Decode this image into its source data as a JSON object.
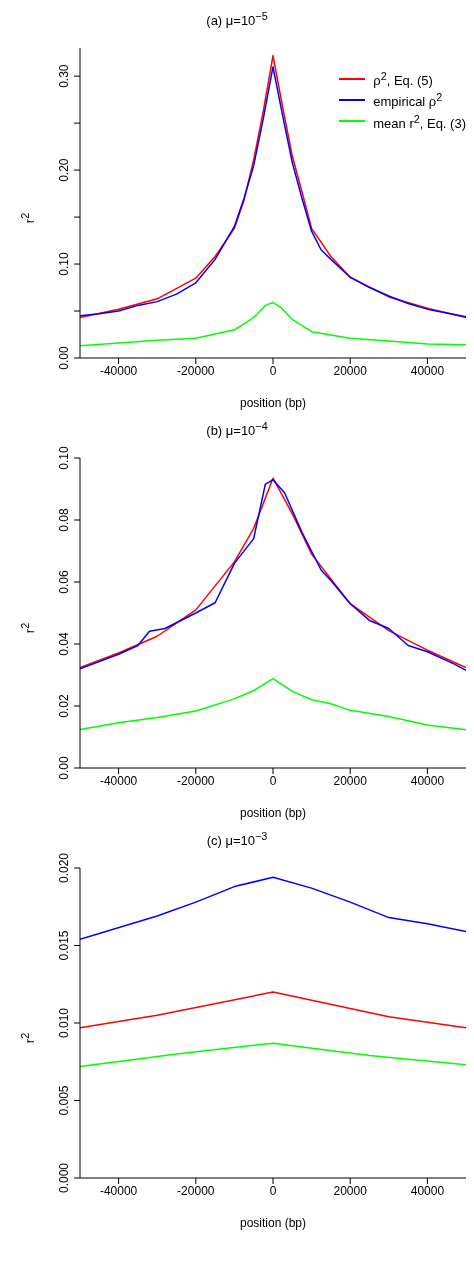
{
  "chart_data": [
    {
      "type": "line",
      "title": "(a) μ=10$^{−5}$",
      "xlabel": "position (bp)",
      "ylabel": "r$^{2}$",
      "xlim": [
        -50000,
        50000
      ],
      "xticks": [
        -40000,
        -20000,
        0,
        20000,
        40000
      ],
      "ylim": [
        0,
        0.33
      ],
      "yticks": [
        {
          "value": 0,
          "label": "0.00"
        },
        {
          "value": 0.05,
          "label": null
        },
        {
          "value": 0.1,
          "label": "0.10"
        },
        {
          "value": 0.15,
          "label": null
        },
        {
          "value": 0.2,
          "label": "0.20"
        },
        {
          "value": 0.25,
          "label": null
        },
        {
          "value": 0.3,
          "label": "0.30"
        }
      ],
      "legend": "top right",
      "marker": "none",
      "line_style": "solid",
      "series": [
        {
          "name": "ρ$^{2}$, Eq. (5)",
          "color": "#ff0000",
          "x": [
            -50000,
            -40000,
            -30000,
            -20000,
            -15000,
            -10000,
            -7500,
            -5000,
            -2500,
            0,
            2500,
            5000,
            7500,
            10000,
            15000,
            20000,
            30000,
            40000,
            50000
          ],
          "values": [
            0.043,
            0.052,
            0.063,
            0.085,
            0.108,
            0.138,
            0.168,
            0.211,
            0.263,
            0.322,
            0.267,
            0.215,
            0.177,
            0.138,
            0.108,
            0.086,
            0.065,
            0.053,
            0.043
          ]
        },
        {
          "name": "empirical ρ$^{2}$",
          "color": "#0000ff",
          "x": [
            -50000,
            -45000,
            -40000,
            -35000,
            -30000,
            -25000,
            -20000,
            -15000,
            -10000,
            -7500,
            -5000,
            -2500,
            0,
            2500,
            5000,
            7500,
            10000,
            12500,
            15000,
            20000,
            25000,
            30000,
            35000,
            40000,
            45000,
            50000
          ],
          "values": [
            0.045,
            0.047,
            0.05,
            0.056,
            0.06,
            0.068,
            0.08,
            0.105,
            0.14,
            0.17,
            0.205,
            0.255,
            0.31,
            0.258,
            0.208,
            0.17,
            0.135,
            0.115,
            0.105,
            0.086,
            0.075,
            0.066,
            0.058,
            0.052,
            0.048,
            0.044
          ]
        },
        {
          "name": "mean r$^{2}$, Eq. (3)",
          "color": "#00ff00",
          "x": [
            -50000,
            -30000,
            -20000,
            -10000,
            -5000,
            -2000,
            0,
            2000,
            5000,
            10000,
            20000,
            30000,
            40000,
            50000
          ],
          "values": [
            0.013,
            0.019,
            0.021,
            0.03,
            0.043,
            0.056,
            0.059,
            0.054,
            0.041,
            0.028,
            0.021,
            0.018,
            0.015,
            0.014
          ]
        }
      ]
    },
    {
      "type": "line",
      "title": "(b) μ=10$^{−4}$",
      "xlabel": "position (bp)",
      "ylabel": "r$^{2}$",
      "xlim": [
        -50000,
        50000
      ],
      "xticks": [
        -40000,
        -20000,
        0,
        20000,
        40000
      ],
      "ylim": [
        0,
        0.1
      ],
      "yticks": [
        {
          "value": 0,
          "label": "0.00"
        },
        {
          "value": 0.02,
          "label": "0.02"
        },
        {
          "value": 0.04,
          "label": "0.04"
        },
        {
          "value": 0.06,
          "label": "0.06"
        },
        {
          "value": 0.08,
          "label": "0.08"
        },
        {
          "value": 0.1,
          "label": "0.10"
        }
      ],
      "marker": "none",
      "line_style": "solid",
      "series": [
        {
          "color": "#ff0000",
          "x": [
            -50000,
            -40000,
            -30000,
            -20000,
            -10000,
            -5000,
            0,
            5000,
            10000,
            20000,
            30000,
            40000,
            50000
          ],
          "values": [
            0.0324,
            0.0371,
            0.0425,
            0.051,
            0.0665,
            0.0773,
            0.0935,
            0.082,
            0.069,
            0.053,
            0.0443,
            0.038,
            0.0324
          ]
        },
        {
          "color": "#0000ff",
          "x": [
            -50000,
            -40000,
            -35000,
            -32000,
            -28000,
            -20000,
            -15000,
            -10000,
            -5000,
            -2000,
            0,
            3000,
            7500,
            12500,
            15000,
            20000,
            25000,
            30000,
            35000,
            40000,
            47000,
            50000
          ],
          "values": [
            0.032,
            0.0367,
            0.0395,
            0.0441,
            0.045,
            0.05,
            0.0533,
            0.066,
            0.074,
            0.0915,
            0.093,
            0.0888,
            0.076,
            0.0638,
            0.0605,
            0.053,
            0.0476,
            0.045,
            0.0395,
            0.0375,
            0.0335,
            0.0315
          ]
        },
        {
          "color": "#00ff00",
          "x": [
            -50000,
            -40000,
            -30000,
            -20000,
            -10000,
            -5000,
            0,
            5000,
            10000,
            15000,
            20000,
            30000,
            40000,
            50000
          ],
          "values": [
            0.0124,
            0.0146,
            0.0163,
            0.0184,
            0.0223,
            0.025,
            0.0288,
            0.0247,
            0.022,
            0.0207,
            0.0186,
            0.0166,
            0.0139,
            0.0123
          ]
        }
      ]
    },
    {
      "type": "line",
      "title": "(c) μ=10$^{−3}$",
      "xlabel": "position (bp)",
      "ylabel": "r$^{2}$",
      "xlim": [
        -50000,
        50000
      ],
      "xticks": [
        -40000,
        -20000,
        0,
        20000,
        40000
      ],
      "ylim": [
        0,
        0.02
      ],
      "yticks": [
        {
          "value": 0,
          "label": "0.000"
        },
        {
          "value": 0.005,
          "label": "0.005"
        },
        {
          "value": 0.01,
          "label": "0.010"
        },
        {
          "value": 0.015,
          "label": "0.015"
        },
        {
          "value": 0.02,
          "label": "0.020"
        }
      ],
      "marker": "none",
      "line_style": "solid",
      "series": [
        {
          "color": "#0000ff",
          "x": [
            -50000,
            -30000,
            -20000,
            -10000,
            0,
            10000,
            20000,
            30000,
            40000,
            50000
          ],
          "values": [
            0.0154,
            0.0169,
            0.0178,
            0.0188,
            0.0194,
            0.0187,
            0.0178,
            0.0168,
            0.0164,
            0.0159
          ]
        },
        {
          "color": "#ff0000",
          "x": [
            -50000,
            -30000,
            0,
            30000,
            50000
          ],
          "values": [
            0.0097,
            0.0105,
            0.012,
            0.0104,
            0.0097
          ]
        },
        {
          "color": "#00ff00",
          "x": [
            -50000,
            -25000,
            0,
            25000,
            50000
          ],
          "values": [
            0.0072,
            0.008,
            0.0087,
            0.0079,
            0.0073
          ]
        }
      ]
    }
  ]
}
